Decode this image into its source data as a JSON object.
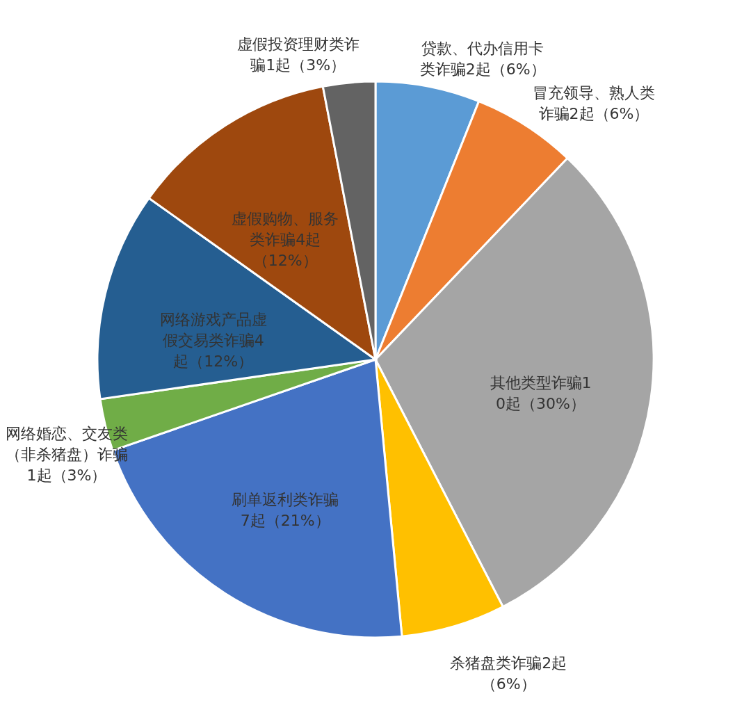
{
  "chart_data": {
    "type": "pie",
    "categories": [
      null,
      null,
      null,
      null,
      null,
      null,
      null,
      null,
      null
    ],
    "values": [
      2,
      2,
      10,
      2,
      7,
      1,
      4,
      4,
      1
    ],
    "colors": [
      "#5b9bd5",
      "#ed7d31",
      "#a5a5a5",
      "#ffc000",
      "#4472c4",
      "#70ad47",
      "#255e91",
      "#9e480e",
      "#636363"
    ],
    "value_labels": [
      "贷款、代办信用卡类诈骗2起（6%）",
      "冒充领导、熟人类诈骗2起（6%）",
      "其他类型诈骗10起（30%）",
      "杀猪盘类诈骗2起（6%）",
      "刷单返利类诈骗7起（21%）",
      "网络婚恋、交友类（非杀猪盘）诈骗1起（3%）",
      "网络游戏产品虚假交易类诈骗4起（12%）",
      "虚假购物、服务类诈骗4起（12%）",
      "虚假投资理财类诈骗1起（3%）"
    ]
  }
}
